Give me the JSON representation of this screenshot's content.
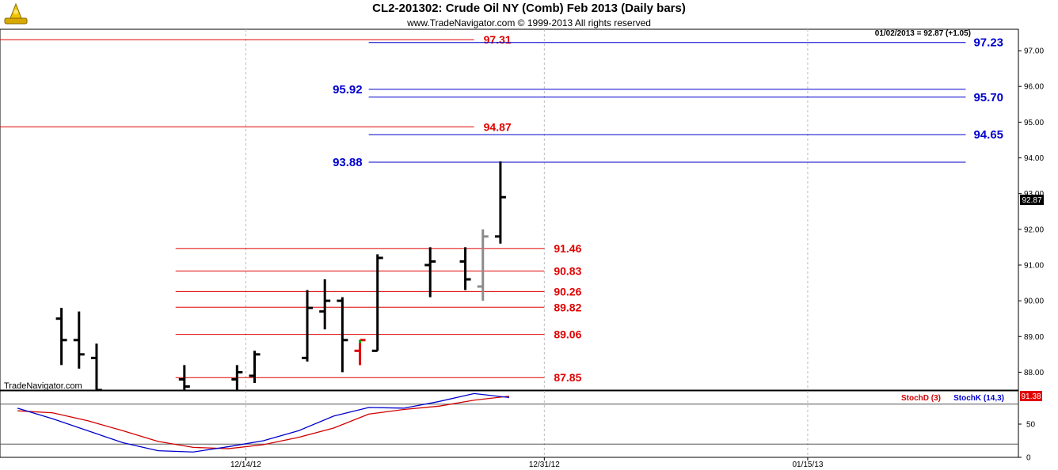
{
  "header": {
    "title": "CL2-201302:  Crude Oil NY (Comb) Feb 2013  (Daily bars)",
    "subtitle": "www.TradeNavigator.com © 1999-2013 All rights reserved",
    "watermark": "TradeNavigator.com",
    "last_readout": "01/02/2013 = 92.87 (+1.05)",
    "last_price_badge": "92.87",
    "stoch_badge": "91.38"
  },
  "colors": {
    "bar": "#000000",
    "bar_grey": "#8c8c8c",
    "bar_red": "#e00000",
    "bar_green": "#00b000",
    "red_level": "#e00000",
    "blue_level": "#0000cc",
    "grid": "#bbbbbb",
    "stoch_d": "#d00000",
    "stoch_k": "#0000cc"
  },
  "chart_data": [
    {
      "type": "bar",
      "subtype": "ohlc",
      "title": "CL2-201302:  Crude Oil NY (Comb) Feb 2013  (Daily bars)",
      "ylim": [
        87.5,
        97.6
      ],
      "y_ticks": [
        "88.00",
        "89.00",
        "90.00",
        "91.00",
        "92.00",
        "93.00",
        "94.00",
        "95.00",
        "96.00",
        "97.00"
      ],
      "y_tick_values": [
        88,
        89,
        90,
        91,
        92,
        93,
        94,
        95,
        96,
        97
      ],
      "x_ticks": [
        "12/14/12",
        "12/31/12",
        "01/15/13"
      ],
      "x_tick_dates": [
        "2012-12-14",
        "2012-12-31",
        "2013-01-15"
      ],
      "x_range": [
        "2012-11-30",
        "2013-01-27"
      ],
      "grid": true,
      "bars": [
        {
          "date": "2012-12-03",
          "open": 89.5,
          "high": 89.8,
          "low": 88.2,
          "close": 88.9
        },
        {
          "date": "2012-12-04",
          "open": 88.9,
          "high": 89.7,
          "low": 88.1,
          "close": 88.5
        },
        {
          "date": "2012-12-05",
          "open": 88.4,
          "high": 88.8,
          "low": 87.5,
          "close": 87.5
        },
        {
          "date": "2012-12-10",
          "open": 87.8,
          "high": 88.2,
          "low": 87.5,
          "close": 87.6
        },
        {
          "date": "2012-12-13",
          "open": 87.8,
          "high": 88.2,
          "low": 87.5,
          "close": 88.0
        },
        {
          "date": "2012-12-14",
          "open": 87.9,
          "high": 88.6,
          "low": 87.7,
          "close": 88.5
        },
        {
          "date": "2012-12-17",
          "open": 88.4,
          "high": 90.3,
          "low": 88.3,
          "close": 89.8
        },
        {
          "date": "2012-12-18",
          "open": 89.7,
          "high": 90.6,
          "low": 89.2,
          "close": 90.0
        },
        {
          "date": "2012-12-19",
          "open": 90.0,
          "high": 90.1,
          "low": 88.0,
          "close": 88.9
        },
        {
          "date": "2012-12-20",
          "open": 88.6,
          "high": 88.9,
          "low": 88.2,
          "close": 88.9,
          "color": "red",
          "high_tick_color": "green"
        },
        {
          "date": "2012-12-21",
          "open": 88.6,
          "high": 91.3,
          "low": 88.6,
          "close": 91.2
        },
        {
          "date": "2012-12-24",
          "open": 91.0,
          "high": 91.5,
          "low": 90.1,
          "close": 91.1
        },
        {
          "date": "2012-12-26",
          "open": 91.1,
          "high": 91.5,
          "low": 90.3,
          "close": 90.6
        },
        {
          "date": "2012-12-27",
          "open": 90.4,
          "high": 92.0,
          "low": 90.0,
          "close": 91.8,
          "color": "grey"
        },
        {
          "date": "2012-12-28",
          "open": 91.8,
          "high": 93.9,
          "low": 91.6,
          "close": 92.9
        }
      ],
      "levels_red": [
        {
          "label": "97.31",
          "value": 97.31,
          "from": "2012-11-30",
          "to": "2012-12-27"
        },
        {
          "label": "94.87",
          "value": 94.87,
          "from": "2012-11-30",
          "to": "2012-12-27"
        },
        {
          "label": "91.46",
          "value": 91.46,
          "from": "2012-12-10",
          "to": "2012-12-31"
        },
        {
          "label": "90.83",
          "value": 90.83,
          "from": "2012-12-10",
          "to": "2012-12-31"
        },
        {
          "label": "90.26",
          "value": 90.26,
          "from": "2012-12-10",
          "to": "2012-12-31"
        },
        {
          "label": "89.82",
          "value": 89.82,
          "from": "2012-12-10",
          "to": "2012-12-31"
        },
        {
          "label": "89.06",
          "value": 89.06,
          "from": "2012-12-10",
          "to": "2012-12-31"
        },
        {
          "label": "87.85",
          "value": 87.85,
          "from": "2012-12-10",
          "to": "2012-12-31"
        }
      ],
      "levels_blue": [
        {
          "label": "97.23",
          "value": 97.23,
          "from": "2012-12-21",
          "to": "2013-01-24",
          "label_side": "right"
        },
        {
          "label": "95.92",
          "value": 95.92,
          "from": "2012-12-21",
          "to": "2013-01-24",
          "label_side": "left"
        },
        {
          "label": "95.70",
          "value": 95.7,
          "from": "2012-12-21",
          "to": "2013-01-24",
          "label_side": "right"
        },
        {
          "label": "94.65",
          "value": 94.65,
          "from": "2012-12-21",
          "to": "2013-01-24",
          "label_side": "right"
        },
        {
          "label": "93.88",
          "value": 93.88,
          "from": "2012-12-21",
          "to": "2013-01-24",
          "label_side": "left"
        }
      ]
    },
    {
      "type": "line",
      "title": "",
      "ylim": [
        0,
        100
      ],
      "y_ticks": [
        "0",
        "50"
      ],
      "y_tick_values": [
        0,
        50
      ],
      "reference_lines": [
        20,
        80
      ],
      "legend": [
        "StochD (3)",
        "StochK (14,3)"
      ],
      "series": [
        {
          "name": "StochD (3)",
          "color": "red",
          "x": [
            "2012-12-01",
            "2012-12-03",
            "2012-12-05",
            "2012-12-07",
            "2012-12-09",
            "2012-12-11",
            "2012-12-13",
            "2012-12-15",
            "2012-12-17",
            "2012-12-19",
            "2012-12-21",
            "2012-12-23",
            "2012-12-25",
            "2012-12-27",
            "2012-12-29"
          ],
          "values": [
            70,
            67,
            55,
            40,
            24,
            15,
            13,
            19,
            30,
            44,
            65,
            72,
            77,
            86,
            92
          ]
        },
        {
          "name": "StochK (14,3)",
          "color": "blue",
          "x": [
            "2012-12-01",
            "2012-12-03",
            "2012-12-05",
            "2012-12-07",
            "2012-12-09",
            "2012-12-11",
            "2012-12-13",
            "2012-12-15",
            "2012-12-17",
            "2012-12-19",
            "2012-12-21",
            "2012-12-23",
            "2012-12-25",
            "2012-12-27",
            "2012-12-29"
          ],
          "values": [
            74,
            58,
            40,
            22,
            10,
            8,
            16,
            25,
            40,
            62,
            75,
            74,
            84,
            96,
            90
          ]
        }
      ]
    }
  ]
}
